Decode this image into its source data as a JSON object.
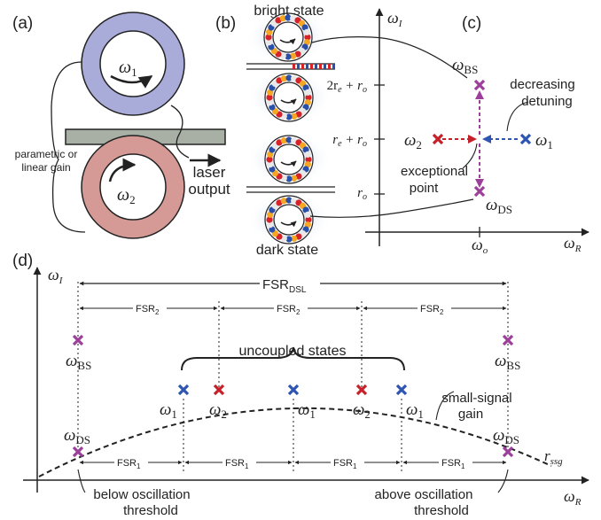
{
  "panels": {
    "a": "(a)",
    "b": "(b)",
    "c": "(c)",
    "d": "(d)"
  },
  "colors": {
    "ring1": "#a9acd9",
    "ring2": "#d59a96",
    "waveguide": "#a8b0a6",
    "purple": "#9b3f9b",
    "red": "#c8202a",
    "blue": "#2f55b2"
  },
  "panel_a": {
    "omega1_sym": "ω",
    "omega1_sub": "1",
    "omega2_sym": "ω",
    "omega2_sub": "2",
    "gain_line1": "parametric or",
    "gain_line2": "linear gain",
    "laser_line1": "laser",
    "laser_line2": "output"
  },
  "panel_b": {
    "bright": "bright state",
    "dark": "dark state"
  },
  "panel_c": {
    "axis_y_sym": "ω",
    "axis_y_sub": "I",
    "axis_x_sym": "ω",
    "axis_x_sub": "R",
    "tick_2re_ro": "2r",
    "tick_2re_ro_sub1": "e",
    "tick_2re_ro_plus": " + r",
    "tick_2re_ro_sub2": "o",
    "tick_re_ro": "r",
    "tick_re_ro_sub1": "e",
    "tick_re_ro_plus": " + r",
    "tick_re_ro_sub2": "o",
    "tick_ro": "r",
    "tick_ro_sub": "o",
    "x_tick_sym": "ω",
    "x_tick_sub": "o",
    "bs_sym": "ω",
    "bs_sub": "BS",
    "ds_sym": "ω",
    "ds_sub": "DS",
    "w1_sym": "ω",
    "w1_sub": "1",
    "w2_sym": "ω",
    "w2_sub": "2",
    "detuning_line1": "decreasing",
    "detuning_line2": "detuning",
    "ep_line1": "exceptional",
    "ep_line2": "point"
  },
  "panel_d": {
    "axis_y_sym": "ω",
    "axis_y_sub": "I",
    "axis_x_sym": "ω",
    "axis_x_sub": "R",
    "fsr_dsl": "FSR",
    "fsr_dsl_sub": "DSL",
    "fsr2": "FSR",
    "fsr2_sub": "2",
    "fsr1": "FSR",
    "fsr1_sub": "1",
    "uncoupled": "uncoupled states",
    "bs_sym": "ω",
    "bs_sub": "BS",
    "ds_sym": "ω",
    "ds_sub": "DS",
    "w1_sym": "ω",
    "w1_sub": "1",
    "w2_sym": "ω",
    "w2_sub": "2",
    "ssg_line1": "small-signal",
    "ssg_line2": "gain",
    "rssg": "r",
    "rssg_sub": "ssg",
    "below_line1": "below oscillation",
    "below_line2": "threshold",
    "above_line1": "above oscillation",
    "above_line2": "threshold"
  }
}
